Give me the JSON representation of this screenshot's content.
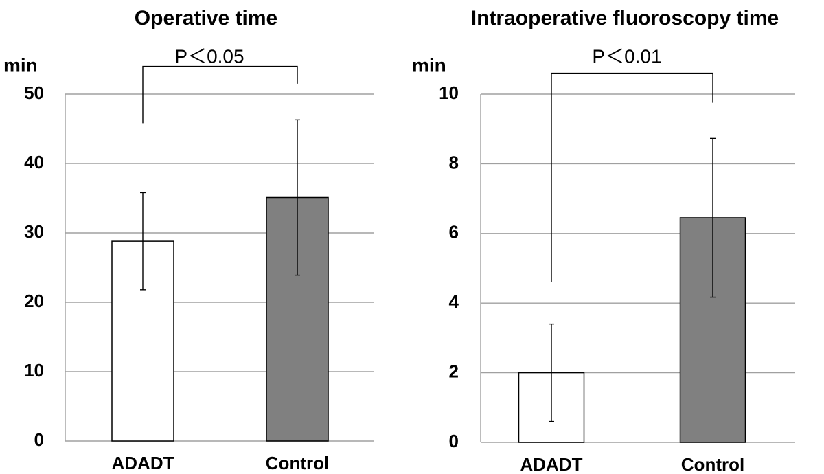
{
  "chart_data": [
    {
      "type": "bar",
      "title": "Operative time",
      "ylabel": "min",
      "ylim": [
        0,
        50
      ],
      "yticks": [
        0,
        10,
        20,
        30,
        40,
        50
      ],
      "grid": true,
      "categories": [
        "ADADT",
        "Control"
      ],
      "values": [
        28.8,
        35.1
      ],
      "error": [
        7.0,
        11.2
      ],
      "bar_colors": [
        "#ffffff",
        "#808080"
      ],
      "significance": {
        "label": "P＜0.05",
        "between": [
          "ADADT",
          "Control"
        ],
        "left_y": 45.8,
        "right_y": 51.5,
        "top_y": 54.0
      }
    },
    {
      "type": "bar",
      "title": "Intraoperative fluoroscopy time",
      "ylabel": "min",
      "ylim": [
        0,
        10
      ],
      "yticks": [
        0,
        2,
        4,
        6,
        8,
        10
      ],
      "grid": true,
      "categories": [
        "ADADT",
        "Control"
      ],
      "values": [
        2.0,
        6.45
      ],
      "error": [
        1.4,
        2.28
      ],
      "bar_colors": [
        "#ffffff",
        "#808080"
      ],
      "significance": {
        "label": "P＜0.01",
        "between": [
          "ADADT",
          "Control"
        ],
        "left_y": 4.6,
        "right_y": 9.75,
        "top_y": 10.6
      }
    }
  ],
  "colors": {
    "gridline": "#a0a0a0",
    "axis": "#a0a0a0",
    "bar_outline": "#000000",
    "text": "#000000"
  }
}
